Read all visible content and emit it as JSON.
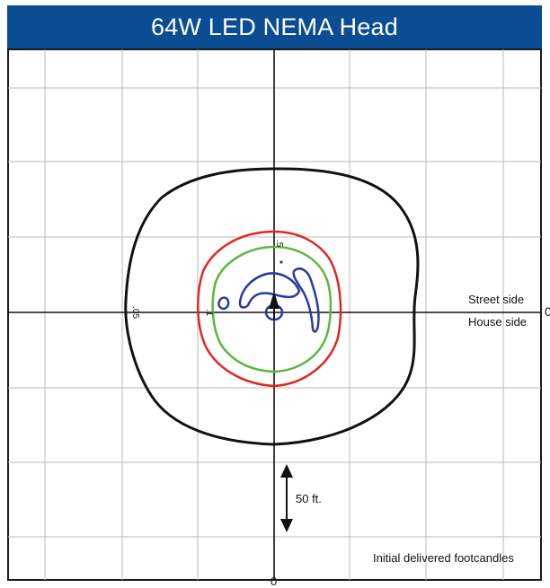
{
  "title": "64W LED NEMA Head",
  "labels": {
    "street_side": "Street side",
    "house_side": "House side",
    "axis_right_zero": "0",
    "axis_bottom_zero": "0",
    "scale_text": "50 ft.",
    "caption": "Initial delivered footcandles"
  },
  "contour_labels": {
    "black": ".05",
    ".1_red": ".1",
    "green_top": ".5"
  },
  "colors": {
    "title_background": "#0a4d93",
    "title_text": "#ffffff",
    "grid": "#b8b8b8",
    "axes": "#111111",
    "contour_outer": "#111111",
    "contour_red": "#e0261f",
    "contour_green": "#5ab83e",
    "contour_blue": "#2a3aa0"
  },
  "icons": {
    "center_marker": "up-arrow-icon",
    "scale_marker": "double-arrow-icon"
  }
}
